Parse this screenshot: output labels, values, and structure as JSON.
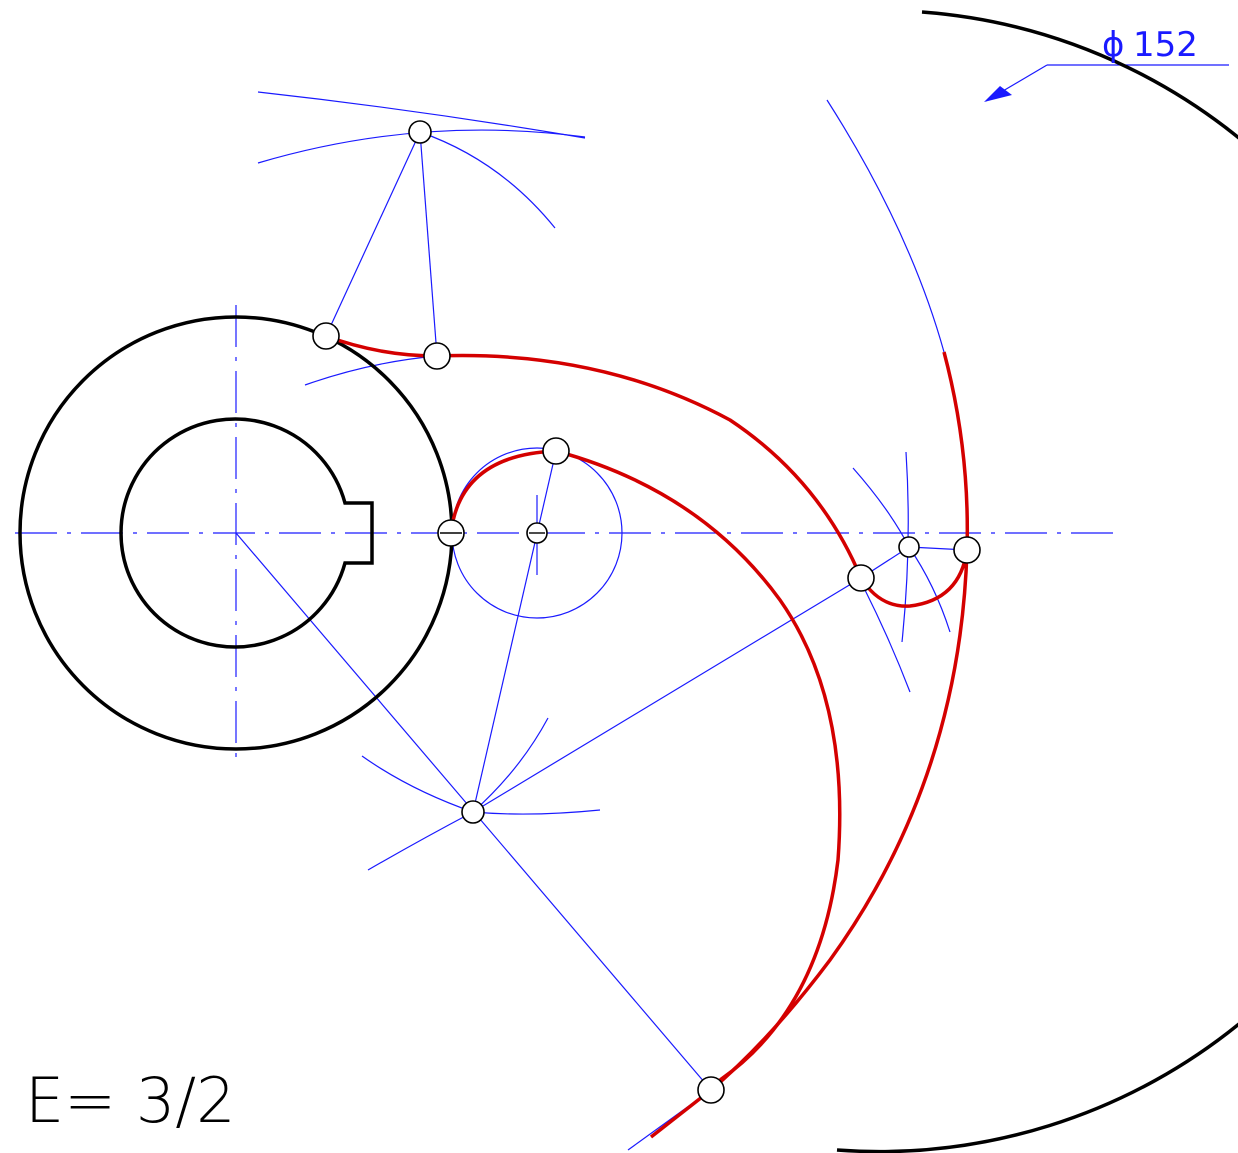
{
  "diagram": {
    "diameter_dimension": "152",
    "diameter_symbol": "ϕ",
    "ratio_label": "E= 3/2"
  },
  "colors": {
    "construction": "#1a1aff",
    "profile": "#d40000",
    "outline": "#000000"
  }
}
